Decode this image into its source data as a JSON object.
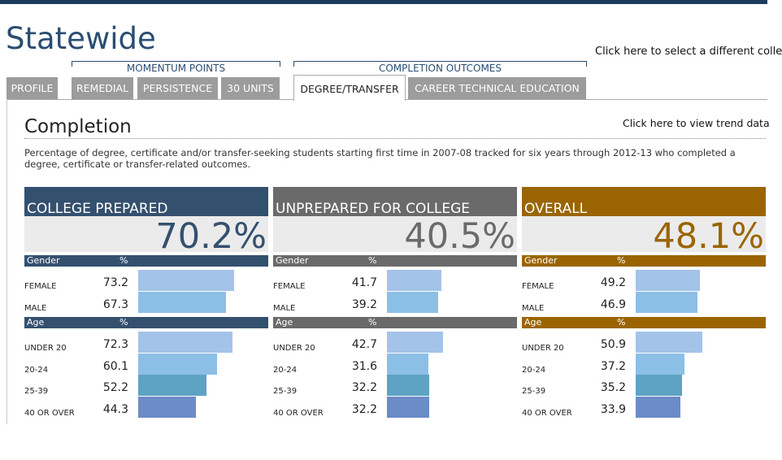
{
  "header": {
    "title": "Statewide",
    "select_link": "Click here to select a different colle"
  },
  "tab_groups": [
    "MOMENTUM POINTS",
    "COMPLETION OUTCOMES"
  ],
  "tabs": [
    "PROFILE",
    "REMEDIAL",
    "PERSISTENCE",
    "30 UNITS",
    "DEGREE/TRANSFER",
    "CAREER TECHNICAL EDUCATION"
  ],
  "section": {
    "title": "Completion",
    "trend_link": "Click here to view trend data",
    "description": "Percentage of degree, certificate and/or transfer-seeking students starting first time in 2007-08 tracked for six years through 2012-13 who completed a degree, certificate or transfer-related outcomes."
  },
  "panels": [
    {
      "title": "COLLEGE PREPARED",
      "overall": "70.2%",
      "groups": [
        {
          "header": "Gender",
          "pct_header": "%",
          "rows": [
            {
              "label": "FEMALE",
              "value": 73.2
            },
            {
              "label": "MALE",
              "value": 67.3
            }
          ]
        },
        {
          "header": "Age",
          "pct_header": "%",
          "rows": [
            {
              "label": "UNDER 20",
              "value": 72.3
            },
            {
              "label": "20-24",
              "value": 60.1
            },
            {
              "label": "25-39",
              "value": 52.2
            },
            {
              "label": "40 OR OVER",
              "value": 44.3
            }
          ]
        }
      ]
    },
    {
      "title": "UNPREPARED FOR COLLEGE",
      "overall": "40.5%",
      "groups": [
        {
          "header": "Gender",
          "pct_header": "%",
          "rows": [
            {
              "label": "FEMALE",
              "value": 41.7
            },
            {
              "label": "MALE",
              "value": 39.2
            }
          ]
        },
        {
          "header": "Age",
          "pct_header": "%",
          "rows": [
            {
              "label": "UNDER 20",
              "value": 42.7
            },
            {
              "label": "20-24",
              "value": 31.6
            },
            {
              "label": "25-39",
              "value": 32.2
            },
            {
              "label": "40 OR OVER",
              "value": 32.2
            }
          ]
        }
      ]
    },
    {
      "title": "OVERALL",
      "overall": "48.1%",
      "groups": [
        {
          "header": "Gender",
          "pct_header": "%",
          "rows": [
            {
              "label": "FEMALE",
              "value": 49.2
            },
            {
              "label": "MALE",
              "value": 46.9
            }
          ]
        },
        {
          "header": "Age",
          "pct_header": "%",
          "rows": [
            {
              "label": "UNDER 20",
              "value": 50.9
            },
            {
              "label": "20-24",
              "value": 37.2
            },
            {
              "label": "25-39",
              "value": 35.2
            },
            {
              "label": "40 OR OVER",
              "value": 33.9
            }
          ]
        }
      ]
    }
  ]
}
